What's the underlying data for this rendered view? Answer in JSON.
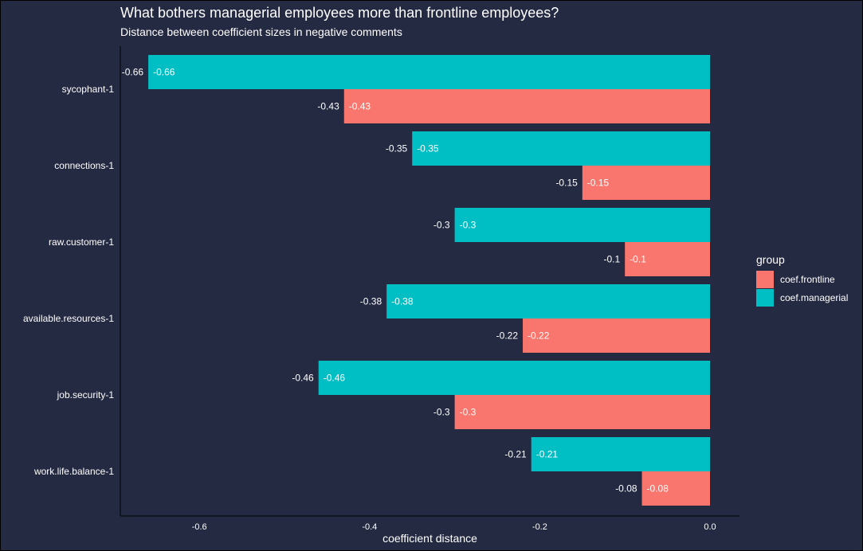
{
  "title": "What bothers managerial employees more than frontline employees?",
  "subtitle": "Distance between coefficient sizes in negative comments",
  "chart_data": {
    "type": "bar",
    "orientation": "horizontal",
    "title": "What bothers managerial employees more than frontline employees?",
    "subtitle": "Distance between coefficient sizes in negative comments",
    "xlabel": "coefficient distance",
    "ylabel": "",
    "xlim": [
      -0.69,
      0.05
    ],
    "xticks": [
      -0.6,
      -0.4,
      -0.2,
      0.0
    ],
    "xtick_labels": [
      "-0.6",
      "-0.4",
      "-0.2",
      "0.0"
    ],
    "categories": [
      "sycophant-1",
      "connections-1",
      "raw.customer-1",
      "available.resources-1",
      "job.security-1",
      "work.life.balance-1"
    ],
    "series": [
      {
        "name": "coef.managerial",
        "color": "#00bfc4",
        "values": [
          -0.66,
          -0.35,
          -0.3,
          -0.38,
          -0.46,
          -0.21
        ]
      },
      {
        "name": "coef.frontline",
        "color": "#f8766d",
        "values": [
          -0.43,
          -0.15,
          -0.1,
          -0.22,
          -0.3,
          -0.08
        ]
      }
    ],
    "data_labels": {
      "coef.managerial": [
        "-0.66",
        "-0.35",
        "-0.3",
        "-0.38",
        "-0.46",
        "-0.21"
      ],
      "coef.frontline": [
        "-0.43",
        "-0.15",
        "-0.1",
        "-0.22",
        "-0.3",
        "-0.08"
      ]
    },
    "grid": false,
    "legend": {
      "title": "group",
      "position": "right",
      "items": [
        {
          "name": "coef.frontline",
          "color": "#f8766d"
        },
        {
          "name": "coef.managerial",
          "color": "#00bfc4"
        }
      ]
    }
  }
}
